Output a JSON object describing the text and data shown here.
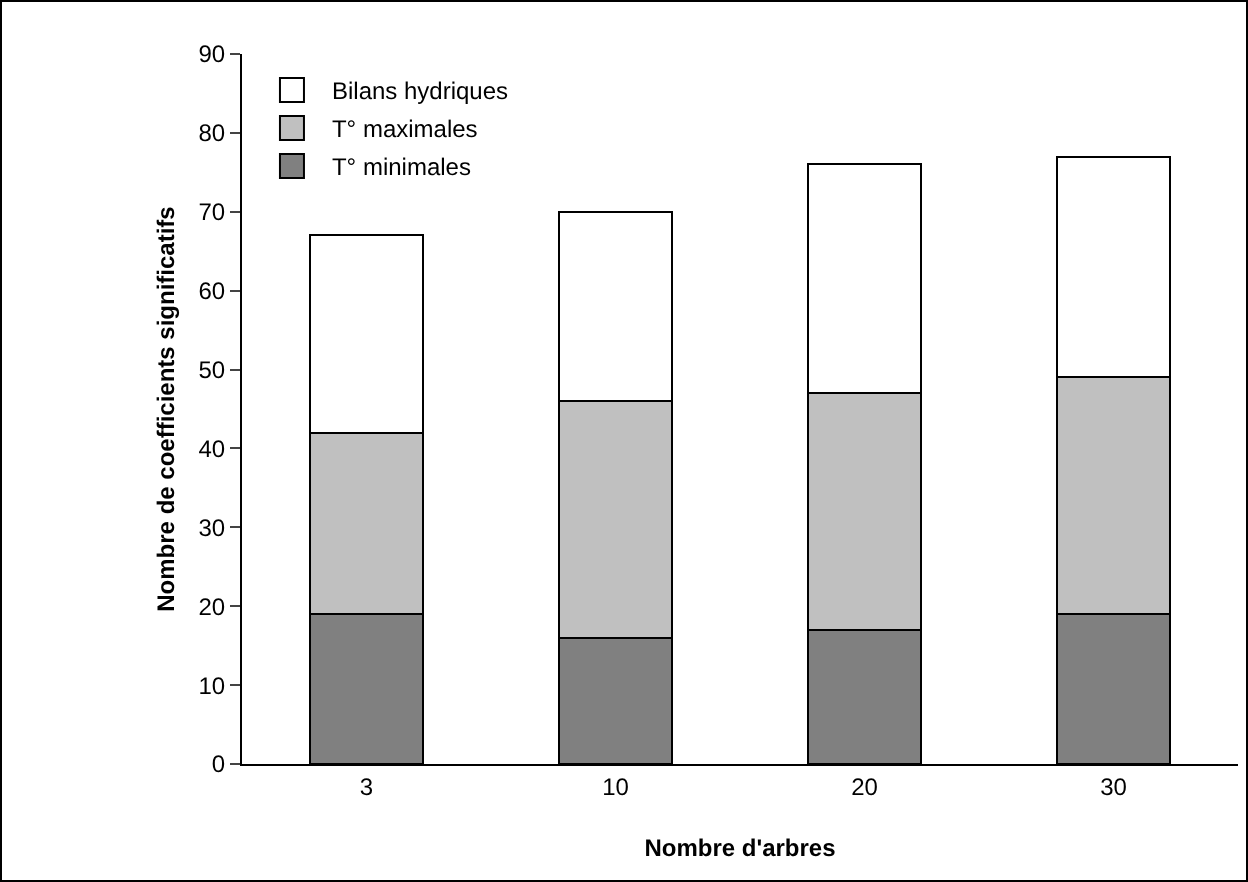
{
  "chart_data": {
    "type": "bar",
    "stacked": true,
    "xlabel": "Nombre d'arbres",
    "ylabel": "Nombre de coefficients significatifs",
    "categories": [
      "3",
      "10",
      "20",
      "30"
    ],
    "series": [
      {
        "name": "T° minimales",
        "color": "#808080",
        "values": [
          19,
          16,
          17,
          19
        ]
      },
      {
        "name": "T° maximales",
        "color": "#c0c0c0",
        "values": [
          23,
          30,
          30,
          30
        ]
      },
      {
        "name": "Bilans hydriques",
        "color": "#ffffff",
        "values": [
          25,
          24,
          29,
          28
        ]
      }
    ],
    "ylim": [
      0,
      90
    ],
    "yticks": [
      0,
      10,
      20,
      30,
      40,
      50,
      60,
      70,
      80,
      90
    ],
    "grid": false,
    "legend": "top left"
  }
}
